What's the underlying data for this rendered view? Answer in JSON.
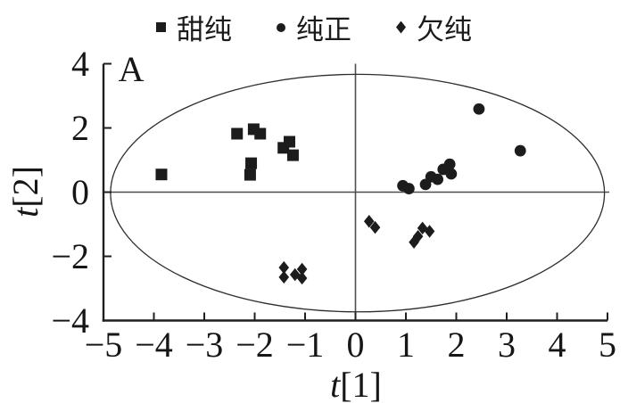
{
  "figure": {
    "panel_label": "A",
    "background_color": "#ffffff",
    "ink_color": "#1c1c1c"
  },
  "chart_data": {
    "type": "scatter",
    "title": "",
    "xlabel": "t[1]",
    "ylabel": "t[2]",
    "xlim": [
      -5,
      5
    ],
    "ylim": [
      -4,
      4
    ],
    "grid": false,
    "legend_position": "top-center",
    "x_ticks": {
      "values": [
        -5,
        -4,
        -3,
        -2,
        -1,
        0,
        1,
        2,
        3,
        4,
        5
      ],
      "labels": [
        "−5",
        "−4",
        "−3",
        "−2",
        "−1",
        "0",
        "1",
        "2",
        "3",
        "4",
        "5"
      ]
    },
    "y_ticks": {
      "values": [
        4,
        2,
        0,
        -2,
        -4
      ],
      "labels": [
        "4",
        "2",
        "0",
        "−2",
        "−4"
      ]
    },
    "crosshair_lines": {
      "x": 0,
      "y": 0
    },
    "ellipse": {
      "cx": 0.04,
      "cy": -0.03,
      "rx": 4.9,
      "ry": 3.7
    },
    "annotations": [
      {
        "text": "A",
        "x": -4.45,
        "y": 3.85
      }
    ],
    "series": [
      {
        "name": "甜纯",
        "marker": "square",
        "color": "#1c1c1c",
        "points": [
          [
            -3.85,
            0.55
          ],
          [
            -2.35,
            1.82
          ],
          [
            -2.02,
            1.96
          ],
          [
            -1.89,
            1.82
          ],
          [
            -2.07,
            0.9
          ],
          [
            -2.09,
            0.54
          ],
          [
            -1.43,
            1.38
          ],
          [
            -1.31,
            1.57
          ],
          [
            -1.24,
            1.15
          ]
        ]
      },
      {
        "name": "纯正",
        "marker": "circle",
        "color": "#1c1c1c",
        "points": [
          [
            0.94,
            0.2
          ],
          [
            1.06,
            0.11
          ],
          [
            1.39,
            0.24
          ],
          [
            1.5,
            0.48
          ],
          [
            1.63,
            0.4
          ],
          [
            1.74,
            0.71
          ],
          [
            1.87,
            0.87
          ],
          [
            1.9,
            0.57
          ],
          [
            2.45,
            2.59
          ],
          [
            3.27,
            1.29
          ]
        ]
      },
      {
        "name": "欠纯",
        "marker": "diamond",
        "color": "#1c1c1c",
        "points": [
          [
            0.27,
            -0.91
          ],
          [
            0.39,
            -1.1
          ],
          [
            1.33,
            -1.12
          ],
          [
            1.47,
            -1.22
          ],
          [
            1.24,
            -1.38
          ],
          [
            1.16,
            -1.56
          ],
          [
            -1.42,
            -2.35
          ],
          [
            -1.42,
            -2.65
          ],
          [
            -1.2,
            -2.57
          ],
          [
            -1.06,
            -2.4
          ],
          [
            -1.06,
            -2.68
          ]
        ]
      }
    ]
  }
}
